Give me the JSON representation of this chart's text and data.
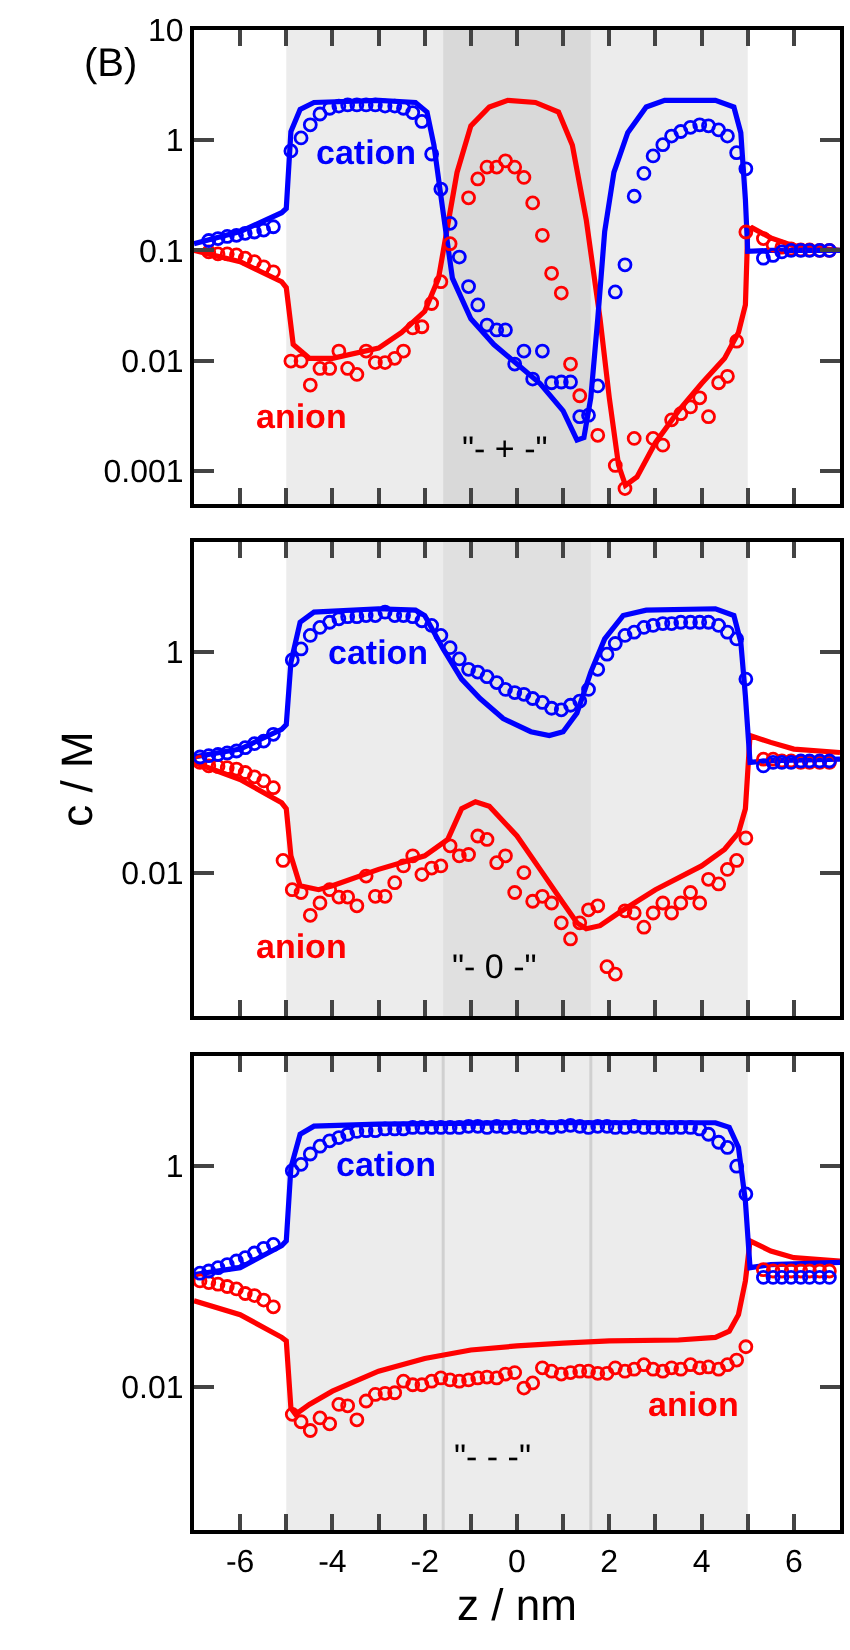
{
  "chart_data": [
    {
      "type": "line",
      "log": true,
      "grid": false,
      "tick_labels": "y",
      "xlim": [
        -7,
        7
      ],
      "ylim": [
        0.0005,
        10
      ],
      "xticks": [
        -7,
        -6,
        -5,
        -4,
        -3,
        -2,
        -1,
        0,
        1,
        2,
        3,
        4,
        5,
        6
      ],
      "yticks": [
        10,
        1,
        0.1,
        0.01,
        0.001
      ],
      "bands": [
        {
          "axis": "x",
          "from": -5,
          "to": 5,
          "color": "#ececec"
        },
        {
          "axis": "x",
          "from": -1.6,
          "to": 1.6,
          "color": "#d9d9d9"
        }
      ],
      "annotations": [
        "(B)",
        "cation",
        "anion",
        "\"- + -\""
      ],
      "series": [
        {
          "color": "#0000ff",
          "x": [
            -7,
            -6,
            -5.1,
            -5,
            -4.9,
            -4.7,
            -4.4,
            -3,
            -2.2,
            -1.95,
            -1.8,
            -1.6,
            -1.4,
            -1.0,
            -0.5,
            0,
            0.5,
            1.0,
            1.3,
            1.45,
            1.6,
            1.75,
            1.9,
            2.1,
            2.4,
            2.8,
            3.2,
            4.3,
            4.7,
            4.85,
            4.95,
            5.0,
            5.5,
            7
          ],
          "values": [
            0.115,
            0.148,
            0.22,
            0.24,
            1.2,
            1.9,
            2.2,
            2.3,
            2.2,
            1.8,
            0.9,
            0.22,
            0.056,
            0.024,
            0.014,
            0.0093,
            0.0062,
            0.0035,
            0.0019,
            0.002,
            0.0046,
            0.024,
            0.148,
            0.51,
            1.17,
            2.0,
            2.3,
            2.3,
            2.0,
            1.17,
            0.29,
            0.098,
            0.1,
            0.1
          ]
        },
        {
          "color": "#ff0000",
          "x": [
            -7,
            -6,
            -5.1,
            -5,
            -4.85,
            -4.5,
            -4,
            -3,
            -2.5,
            -2,
            -1.7,
            -1.5,
            -1.3,
            -1.0,
            -0.6,
            -0.2,
            0.4,
            0.9,
            1.2,
            1.5,
            1.8,
            2.0,
            2.2,
            2.35,
            2.6,
            3.0,
            3.5,
            4.0,
            4.5,
            4.8,
            4.95,
            5.0,
            5.1,
            5.5,
            6,
            7
          ],
          "values": [
            0.1,
            0.079,
            0.052,
            0.046,
            0.014,
            0.0105,
            0.0105,
            0.013,
            0.018,
            0.028,
            0.056,
            0.17,
            0.51,
            1.35,
            2.0,
            2.3,
            2.2,
            1.8,
            0.9,
            0.19,
            0.024,
            0.0046,
            0.00113,
            0.00074,
            0.00088,
            0.0018,
            0.0035,
            0.0062,
            0.0105,
            0.018,
            0.032,
            0.148,
            0.16,
            0.13,
            0.11,
            0.1
          ]
        },
        {
          "type": "scatter",
          "marker": "circle",
          "color": "#0000ff",
          "x": [
            -6.68,
            -6.48,
            -6.28,
            -6.08,
            -5.89,
            -5.69,
            -5.49,
            -5.28,
            -4.9,
            -4.68,
            -4.48,
            -4.27,
            -4.06,
            -3.86,
            -3.67,
            -3.47,
            -3.27,
            -3.07,
            -2.86,
            -2.65,
            -2.46,
            -2.26,
            -2.06,
            -1.85,
            -1.65,
            -1.45,
            -1.25,
            -1.05,
            -0.85,
            -0.65,
            -0.44,
            -0.25,
            -0.05,
            0.15,
            0.34,
            0.55,
            0.75,
            0.96,
            1.16,
            1.36,
            1.55,
            1.75,
            2.13,
            2.34,
            2.54,
            2.75,
            2.95,
            3.16,
            3.35,
            3.55,
            3.76,
            3.96,
            4.15,
            4.37,
            4.56,
            4.76,
            4.96,
            5.34,
            5.55,
            5.74,
            5.94,
            6.15,
            6.34,
            6.56,
            6.77
          ],
          "values": [
            0.123,
            0.128,
            0.134,
            0.137,
            0.143,
            0.147,
            0.153,
            0.164,
            0.8,
            1.05,
            1.38,
            1.73,
            1.95,
            2.04,
            2.09,
            2.09,
            2.09,
            2.09,
            2.04,
            2.04,
            1.95,
            1.78,
            1.48,
            0.75,
            0.36,
            0.176,
            0.087,
            0.047,
            0.032,
            0.021,
            0.019,
            0.019,
            0.0093,
            0.0122,
            0.0068,
            0.0122,
            0.0063,
            0.0064,
            0.0064,
            0.0031,
            0.0032,
            0.0059,
            0.042,
            0.074,
            0.31,
            0.5,
            0.72,
            0.91,
            1.09,
            1.2,
            1.31,
            1.38,
            1.35,
            1.24,
            1.09,
            0.77,
            0.55,
            0.085,
            0.09,
            0.097,
            0.1,
            0.1,
            0.1,
            0.1,
            0.1
          ]
        },
        {
          "type": "scatter",
          "marker": "circle",
          "color": "#ff0000",
          "x": [
            -6.68,
            -6.48,
            -6.28,
            -6.08,
            -5.89,
            -5.69,
            -5.49,
            -5.28,
            -4.9,
            -4.68,
            -4.48,
            -4.27,
            -4.06,
            -3.86,
            -3.67,
            -3.47,
            -3.27,
            -3.07,
            -2.86,
            -2.65,
            -2.46,
            -2.26,
            -2.06,
            -1.85,
            -1.65,
            -1.45,
            -1.05,
            -0.85,
            -0.65,
            -0.44,
            -0.25,
            -0.05,
            0.15,
            0.34,
            0.55,
            0.75,
            0.96,
            1.16,
            1.36,
            1.75,
            2.13,
            2.34,
            2.54,
            2.95,
            3.16,
            3.35,
            3.55,
            3.76,
            3.96,
            4.15,
            4.37,
            4.56,
            4.76,
            4.96,
            5.34,
            5.55,
            5.74,
            5.94,
            6.15,
            6.34,
            6.56,
            6.77
          ],
          "values": [
            0.097,
            0.093,
            0.093,
            0.091,
            0.085,
            0.079,
            0.071,
            0.064,
            0.0099,
            0.0099,
            0.006,
            0.0085,
            0.0085,
            0.0122,
            0.0085,
            0.0075,
            0.0122,
            0.0096,
            0.0096,
            0.0105,
            0.0122,
            0.0198,
            0.0203,
            0.033,
            0.052,
            0.115,
            0.3,
            0.445,
            0.57,
            0.57,
            0.65,
            0.57,
            0.46,
            0.27,
            0.137,
            0.062,
            0.041,
            0.0093,
            0.0048,
            0.0021,
            0.00112,
            0.00069,
            0.00197,
            0.00197,
            0.00171,
            0.0029,
            0.0033,
            0.0038,
            0.0046,
            0.0031,
            0.0063,
            0.0072,
            0.015,
            0.147,
            0.128,
            0.112,
            0.107,
            0.103,
            0.101,
            0.101,
            0.1,
            0.1
          ]
        }
      ]
    },
    {
      "type": "line",
      "log": true,
      "grid": false,
      "tick_labels": "y",
      "xlim": [
        -7,
        7
      ],
      "ylim": [
        0.0005,
        10
      ],
      "ylabel": "c / M",
      "xticks": [
        -7,
        -6,
        -5,
        -4,
        -3,
        -2,
        -1,
        0,
        1,
        2,
        3,
        4,
        5,
        6
      ],
      "yticks": [
        1,
        0.01
      ],
      "bands": [
        {
          "axis": "x",
          "from": -5,
          "to": 5,
          "color": "#ececec"
        },
        {
          "axis": "x",
          "from": -1.6,
          "to": 1.6,
          "color": "#e0e0e0"
        }
      ],
      "annotations": [
        "cation",
        "anion",
        "\"- 0 -\""
      ],
      "series": [
        {
          "color": "#0000ff",
          "x": [
            -7,
            -6,
            -5.1,
            -5,
            -4.9,
            -4.7,
            -4.4,
            -3,
            -2.2,
            -2.0,
            -1.6,
            -1.2,
            -0.8,
            -0.3,
            0.3,
            0.7,
            1.0,
            1.3,
            1.6,
            1.9,
            2.3,
            2.8,
            4.3,
            4.7,
            4.85,
            4.95,
            5.05,
            5.5,
            7
          ],
          "values": [
            0.112,
            0.132,
            0.2,
            0.22,
            0.81,
            1.87,
            2.31,
            2.48,
            2.41,
            2.15,
            1.07,
            0.57,
            0.38,
            0.25,
            0.19,
            0.175,
            0.19,
            0.28,
            0.66,
            1.32,
            2.15,
            2.41,
            2.48,
            2.15,
            1.23,
            0.4,
            0.1,
            0.104,
            0.107
          ]
        },
        {
          "color": "#ff0000",
          "x": [
            -7,
            -6,
            -5.1,
            -5,
            -4.9,
            -4.7,
            -4.3,
            -4,
            -3,
            -2,
            -1.5,
            -1.2,
            -0.9,
            -0.6,
            0,
            0.5,
            1.0,
            1.3,
            1.5,
            1.8,
            2.2,
            3,
            4,
            4.5,
            4.8,
            4.95,
            5.05,
            5.5,
            6,
            7
          ],
          "values": [
            0.1,
            0.07,
            0.043,
            0.038,
            0.0142,
            0.0076,
            0.007,
            0.0076,
            0.0107,
            0.0142,
            0.02,
            0.038,
            0.044,
            0.04,
            0.0215,
            0.0107,
            0.0053,
            0.0035,
            0.0031,
            0.0033,
            0.0043,
            0.007,
            0.0115,
            0.0163,
            0.023,
            0.038,
            0.175,
            0.152,
            0.132,
            0.123
          ]
        },
        {
          "type": "scatter",
          "marker": "circle",
          "color": "#0000ff",
          "x": [
            -6.87,
            -6.68,
            -6.48,
            -6.28,
            -6.08,
            -5.89,
            -5.69,
            -5.49,
            -5.28,
            -4.87,
            -4.68,
            -4.48,
            -4.27,
            -4.06,
            -3.86,
            -3.67,
            -3.47,
            -3.27,
            -3.07,
            -2.86,
            -2.65,
            -2.46,
            -2.26,
            -2.06,
            -1.85,
            -1.65,
            -1.45,
            -1.25,
            -1.05,
            -0.85,
            -0.65,
            -0.44,
            -0.25,
            -0.05,
            0.15,
            0.34,
            0.55,
            0.75,
            0.96,
            1.16,
            1.36,
            1.55,
            1.75,
            1.95,
            2.13,
            2.34,
            2.54,
            2.75,
            2.95,
            3.16,
            3.35,
            3.55,
            3.76,
            3.96,
            4.15,
            4.37,
            4.56,
            4.76,
            4.96,
            5.34,
            5.55,
            5.74,
            5.94,
            6.15,
            6.34,
            6.56,
            6.77
          ],
          "values": [
            0.112,
            0.115,
            0.118,
            0.122,
            0.127,
            0.136,
            0.148,
            0.156,
            0.18,
            0.85,
            1.07,
            1.42,
            1.68,
            1.87,
            2.01,
            2.1,
            2.1,
            2.15,
            2.15,
            2.31,
            2.15,
            2.15,
            2.1,
            1.93,
            1.75,
            1.42,
            1.1,
            0.87,
            0.7,
            0.66,
            0.6,
            0.53,
            0.46,
            0.43,
            0.415,
            0.38,
            0.35,
            0.31,
            0.3,
            0.33,
            0.36,
            0.46,
            0.7,
            0.96,
            1.2,
            1.42,
            1.52,
            1.68,
            1.75,
            1.82,
            1.82,
            1.87,
            1.87,
            1.87,
            1.87,
            1.75,
            1.52,
            1.32,
            0.57,
            0.093,
            0.1,
            0.1,
            0.1,
            0.103,
            0.103,
            0.103,
            0.103
          ]
        },
        {
          "type": "scatter",
          "marker": "circle",
          "color": "#ff0000",
          "x": [
            -6.87,
            -6.68,
            -6.48,
            -6.28,
            -6.08,
            -5.89,
            -5.69,
            -5.49,
            -5.28,
            -5.07,
            -4.87,
            -4.68,
            -4.48,
            -4.27,
            -4.06,
            -3.86,
            -3.67,
            -3.47,
            -3.27,
            -3.07,
            -2.86,
            -2.65,
            -2.46,
            -2.26,
            -2.06,
            -1.85,
            -1.65,
            -1.45,
            -1.25,
            -1.05,
            -0.85,
            -0.65,
            -0.44,
            -0.25,
            -0.05,
            0.15,
            0.34,
            0.55,
            0.75,
            0.96,
            1.16,
            1.36,
            1.55,
            1.75,
            1.95,
            2.13,
            2.34,
            2.54,
            2.75,
            2.95,
            3.16,
            3.35,
            3.55,
            3.76,
            3.96,
            4.15,
            4.37,
            4.56,
            4.76,
            4.96,
            5.34,
            5.55,
            5.74,
            5.94,
            6.15,
            6.34,
            6.56,
            6.77
          ],
          "values": [
            0.1,
            0.093,
            0.092,
            0.0895,
            0.087,
            0.081,
            0.074,
            0.068,
            0.059,
            0.0129,
            0.007,
            0.0066,
            0.0041,
            0.0053,
            0.007,
            0.006,
            0.006,
            0.005,
            0.0093,
            0.0061,
            0.0061,
            0.0081,
            0.0115,
            0.0142,
            0.0096,
            0.011,
            0.0115,
            0.0175,
            0.0142,
            0.0146,
            0.0215,
            0.02,
            0.0123,
            0.0142,
            0.0066,
            0.01,
            0.0055,
            0.0061,
            0.0053,
            0.0035,
            0.0025,
            0.0035,
            0.0046,
            0.005,
            0.0014,
            0.0012,
            0.0045,
            0.0043,
            0.0032,
            0.0043,
            0.0053,
            0.0043,
            0.0053,
            0.0066,
            0.0053,
            0.0087,
            0.0079,
            0.0107,
            0.0129,
            0.0206,
            0.107,
            0.107,
            0.103,
            0.103,
            0.1,
            0.1,
            0.1,
            0.1
          ]
        }
      ]
    },
    {
      "type": "line",
      "log": true,
      "grid": false,
      "xlim": [
        -7,
        7
      ],
      "ylim": [
        0.0005,
        10
      ],
      "xlabel": "z / nm",
      "xticks": [
        {
          "value": -7,
          "label": null
        },
        {
          "value": -6,
          "label": "-6"
        },
        {
          "value": -5,
          "label": null
        },
        {
          "value": -4,
          "label": "-4"
        },
        {
          "value": -3,
          "label": null
        },
        {
          "value": -2,
          "label": "-2"
        },
        {
          "value": -1,
          "label": null
        },
        {
          "value": 0,
          "label": "0"
        },
        {
          "value": 1,
          "label": null
        },
        {
          "value": 2,
          "label": "2"
        },
        {
          "value": 3,
          "label": null
        },
        {
          "value": 4,
          "label": "4"
        },
        {
          "value": 5,
          "label": null
        },
        {
          "value": 6,
          "label": "6"
        }
      ],
      "yticks": [
        1,
        0.01
      ],
      "bands": [
        {
          "axis": "x",
          "from": -5,
          "to": 5,
          "color": "#ececec"
        }
      ],
      "ref_lines": [
        {
          "axis": "x",
          "value": -1.6,
          "color": "#d0d0d0"
        },
        {
          "axis": "x",
          "value": 1.6,
          "color": "#d0d0d0"
        }
      ],
      "annotations": [
        "cation",
        "anion",
        "\"- - -\""
      ],
      "series": [
        {
          "color": "#0000ff",
          "x": [
            -7,
            -6,
            -5.1,
            -5,
            -4.9,
            -4.7,
            -4.4,
            -3,
            0,
            4.3,
            4.6,
            4.8,
            4.95,
            5.05,
            5.5,
            7
          ],
          "values": [
            0.104,
            0.12,
            0.19,
            0.21,
            0.97,
            1.95,
            2.31,
            2.41,
            2.48,
            2.48,
            2.25,
            1.48,
            0.48,
            0.12,
            0.128,
            0.134
          ]
        },
        {
          "color": "#ff0000",
          "x": [
            -7,
            -6,
            -5.1,
            -5,
            -4.9,
            -4.8,
            -4.5,
            -4,
            -3,
            -2,
            -1,
            0,
            1,
            2,
            3.5,
            4.3,
            4.6,
            4.8,
            4.95,
            5.05,
            5.5,
            6,
            7
          ],
          "values": [
            0.06,
            0.045,
            0.028,
            0.026,
            0.0064,
            0.0056,
            0.0069,
            0.0091,
            0.0138,
            0.018,
            0.0215,
            0.0234,
            0.0248,
            0.026,
            0.0265,
            0.028,
            0.0318,
            0.045,
            0.091,
            0.21,
            0.17,
            0.148,
            0.138
          ]
        },
        {
          "type": "scatter",
          "marker": "circle",
          "color": "#0000ff",
          "x": [
            -6.87,
            -6.68,
            -6.48,
            -6.28,
            -6.08,
            -5.89,
            -5.69,
            -5.49,
            -5.28,
            -4.87,
            -4.68,
            -4.48,
            -4.27,
            -4.06,
            -3.86,
            -3.67,
            -3.47,
            -3.27,
            -3.07,
            -2.86,
            -2.65,
            -2.46,
            -2.26,
            -2.06,
            -1.85,
            -1.65,
            -1.45,
            -1.25,
            -1.05,
            -0.85,
            -0.65,
            -0.44,
            -0.25,
            -0.05,
            0.15,
            0.34,
            0.55,
            0.75,
            0.96,
            1.16,
            1.36,
            1.55,
            1.75,
            1.95,
            2.13,
            2.34,
            2.54,
            2.75,
            2.95,
            3.16,
            3.35,
            3.55,
            3.76,
            3.96,
            4.15,
            4.37,
            4.56,
            4.76,
            4.96,
            5.34,
            5.55,
            5.74,
            5.94,
            6.15,
            6.34,
            6.56,
            6.77
          ],
          "values": [
            0.107,
            0.112,
            0.12,
            0.128,
            0.138,
            0.148,
            0.163,
            0.18,
            0.195,
            0.91,
            1.04,
            1.29,
            1.52,
            1.7,
            1.82,
            1.95,
            2.07,
            2.1,
            2.1,
            2.18,
            2.18,
            2.18,
            2.25,
            2.25,
            2.25,
            2.25,
            2.25,
            2.25,
            2.3,
            2.3,
            2.25,
            2.3,
            2.25,
            2.3,
            2.25,
            2.3,
            2.3,
            2.25,
            2.3,
            2.35,
            2.3,
            2.25,
            2.3,
            2.3,
            2.25,
            2.25,
            2.3,
            2.25,
            2.25,
            2.25,
            2.25,
            2.25,
            2.25,
            2.18,
            1.95,
            1.65,
            1.48,
            1.0,
            0.56,
            0.098,
            0.098,
            0.098,
            0.098,
            0.098,
            0.098,
            0.098,
            0.098
          ]
        },
        {
          "type": "scatter",
          "marker": "circle",
          "color": "#ff0000",
          "x": [
            -6.87,
            -6.68,
            -6.48,
            -6.28,
            -6.08,
            -5.89,
            -5.69,
            -5.49,
            -5.28,
            -4.87,
            -4.68,
            -4.48,
            -4.27,
            -4.06,
            -3.86,
            -3.67,
            -3.47,
            -3.27,
            -3.07,
            -2.86,
            -2.65,
            -2.46,
            -2.26,
            -2.06,
            -1.85,
            -1.65,
            -1.45,
            -1.25,
            -1.05,
            -0.85,
            -0.65,
            -0.44,
            -0.25,
            -0.05,
            0.15,
            0.34,
            0.55,
            0.75,
            0.96,
            1.16,
            1.36,
            1.55,
            1.75,
            1.95,
            2.13,
            2.34,
            2.54,
            2.75,
            2.95,
            3.16,
            3.35,
            3.55,
            3.76,
            3.96,
            4.15,
            4.37,
            4.56,
            4.76,
            4.96,
            5.34,
            5.55,
            5.74,
            5.94,
            6.15,
            6.34,
            6.56,
            6.77
          ],
          "values": [
            0.091,
            0.088,
            0.085,
            0.081,
            0.077,
            0.07,
            0.067,
            0.061,
            0.053,
            0.0056,
            0.0048,
            0.004,
            0.0052,
            0.0046,
            0.0069,
            0.0067,
            0.005,
            0.0074,
            0.0085,
            0.0087,
            0.0088,
            0.0112,
            0.0104,
            0.0104,
            0.0112,
            0.012,
            0.0115,
            0.0112,
            0.0115,
            0.012,
            0.0122,
            0.012,
            0.013,
            0.0134,
            0.0097,
            0.0108,
            0.0148,
            0.0138,
            0.013,
            0.0134,
            0.0138,
            0.0138,
            0.0132,
            0.0132,
            0.0148,
            0.0138,
            0.0144,
            0.0158,
            0.0144,
            0.0138,
            0.0148,
            0.0144,
            0.0158,
            0.0148,
            0.0151,
            0.0144,
            0.0158,
            0.0174,
            0.023,
            0.115,
            0.112,
            0.112,
            0.112,
            0.112,
            0.112,
            0.112,
            0.112
          ]
        }
      ]
    }
  ]
}
